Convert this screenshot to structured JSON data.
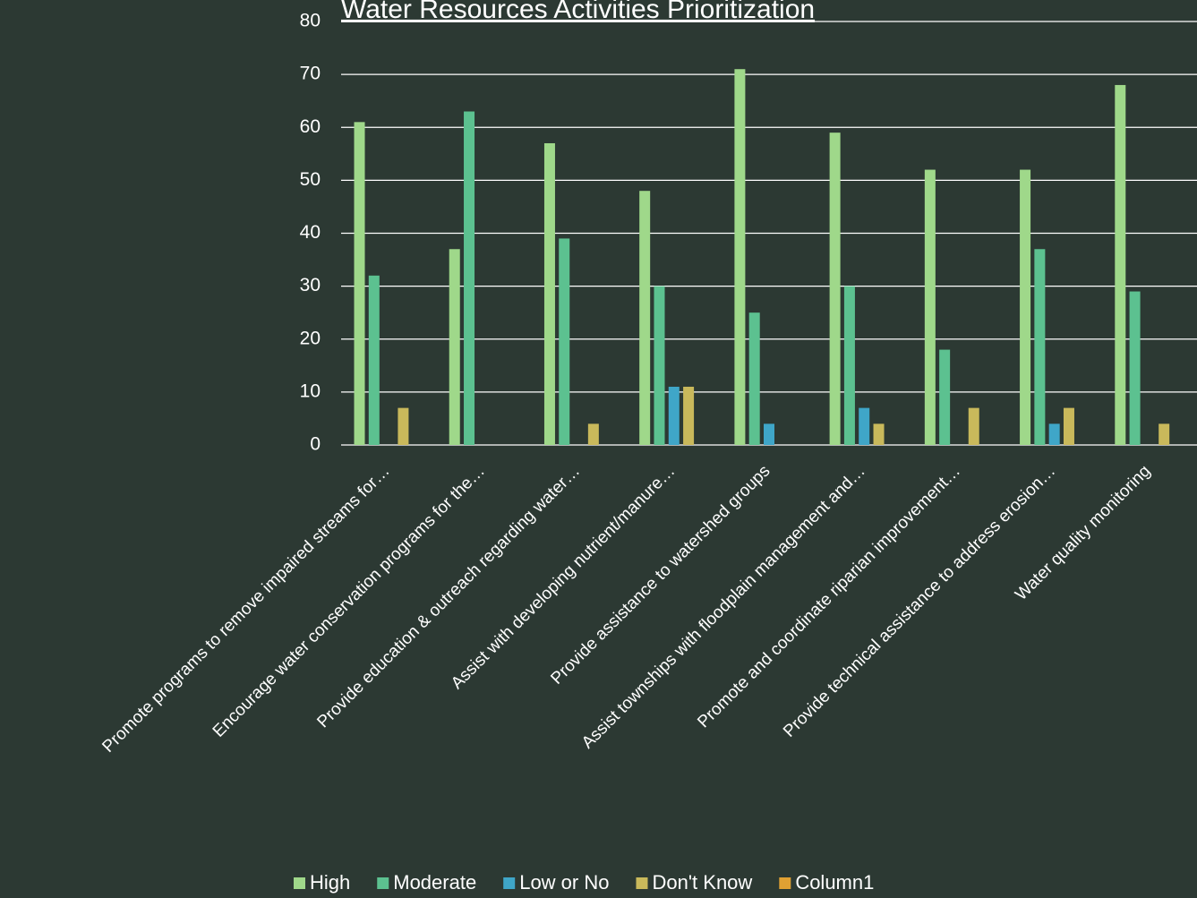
{
  "chart_data": {
    "type": "bar",
    "title": "Water Resources Activities Prioritization",
    "categories": [
      "Promote programs to remove impaired streams for…",
      "Encourage water conservation programs for the…",
      "Provide education & outreach regarding water…",
      "Assist with developing nutrient/manure…",
      "Provide assistance to watershed groups",
      "Assist townships with floodplain management and…",
      "Promote and coordinate riparian improvement…",
      "Provide technical assistance to address erosion…",
      "Water quality monitoring"
    ],
    "series": [
      {
        "name": "High",
        "color": "#9fd88a",
        "values": [
          61,
          37,
          57,
          48,
          71,
          59,
          52,
          52,
          68
        ]
      },
      {
        "name": "Moderate",
        "color": "#5cc190",
        "values": [
          32,
          63,
          39,
          30,
          25,
          30,
          18,
          37,
          29
        ]
      },
      {
        "name": "Low or No",
        "color": "#3fa6c8",
        "values": [
          0,
          0,
          0,
          11,
          4,
          7,
          0,
          4,
          0
        ]
      },
      {
        "name": "Don't Know",
        "color": "#c9b95b",
        "values": [
          7,
          0,
          4,
          11,
          0,
          4,
          7,
          7,
          4
        ]
      },
      {
        "name": "Column1",
        "color": "#e0a133",
        "values": [
          0,
          0,
          0,
          0,
          0,
          0,
          0,
          0,
          0
        ]
      }
    ],
    "ylim": [
      0,
      80
    ],
    "yticks": [
      0,
      10,
      20,
      30,
      40,
      50,
      60,
      70,
      80
    ],
    "grid": true,
    "legend": "bottom"
  }
}
